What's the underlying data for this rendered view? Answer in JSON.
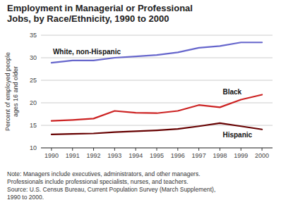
{
  "chart_data": {
    "type": "line",
    "title": "Employment in Managerial or Professional\nJobs, by Race/Ethnicity, 1990 to 2000",
    "y_label": "Percent of employed people\nages 16 and older",
    "note": "Note: Managers include executives, administrators, and other managers.\nProfessionals include professional specialists, nurses, and teachers.\nSource: U.S. Census Bureau, Current Population Survey (March Supplement),\n1990 to 2000.",
    "x": [
      1990,
      1991,
      1992,
      1993,
      1994,
      1995,
      1996,
      1997,
      1998,
      1999,
      2000
    ],
    "series": [
      {
        "name": "White, non-Hispanic",
        "color": "#6666cc",
        "values": [
          28.9,
          29.4,
          29.4,
          30.0,
          30.3,
          30.6,
          31.2,
          32.2,
          32.6,
          33.4,
          33.4
        ]
      },
      {
        "name": "Black",
        "color": "#cc2222",
        "values": [
          16.0,
          16.2,
          16.5,
          18.2,
          17.8,
          17.7,
          18.2,
          19.5,
          19.0,
          20.7,
          21.8
        ]
      },
      {
        "name": "Hispanic",
        "color": "#660000",
        "values": [
          13.0,
          13.1,
          13.2,
          13.5,
          13.7,
          13.9,
          14.2,
          14.8,
          15.5,
          14.8,
          14.1
        ]
      }
    ],
    "xlim": [
      1989.5,
      2000.5
    ],
    "xticks": [
      1990,
      1991,
      1992,
      1993,
      1994,
      1995,
      1996,
      1997,
      1998,
      1999,
      2000
    ],
    "ylim": [
      10,
      35
    ],
    "yticks": [
      10,
      15,
      20,
      25,
      30,
      35
    ],
    "grid": true
  }
}
